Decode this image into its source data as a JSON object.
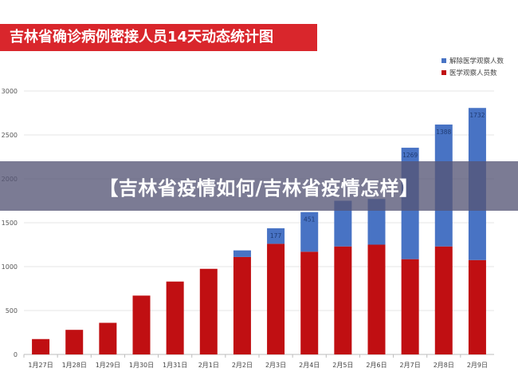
{
  "chart_data": {
    "type": "bar",
    "stacked": true,
    "title": "吉林省确诊病例密接人员14天动态统计图",
    "categories": [
      "1月27日",
      "1月28日",
      "1月29日",
      "1月30日",
      "1月31日",
      "2月1日",
      "2月2日",
      "2月3日",
      "2月4日",
      "2月5日",
      "2月6日",
      "2月7日",
      "2月8日",
      "2月9日"
    ],
    "series": [
      {
        "name": "医学观察人员数",
        "color": "#c00f12",
        "values": [
          175,
          280,
          360,
          670,
          830,
          975,
          1110,
          1260,
          1170,
          1230,
          1250,
          1085,
          1230,
          1075
        ]
      },
      {
        "name": "解除医学观察人数",
        "color": "#4873c4",
        "values": [
          0,
          0,
          0,
          0,
          0,
          0,
          75,
          177,
          451,
          520,
          520,
          1269,
          1388,
          1732
        ]
      }
    ],
    "bar_labels": [
      "",
      "",
      "",
      "",
      "",
      "",
      "",
      "177",
      "451",
      "",
      "",
      "1269",
      "1388",
      "1732"
    ],
    "yticks": [
      "0",
      "500",
      "1000",
      "1500",
      "2000",
      "2500",
      "3000"
    ],
    "ylim": [
      0,
      3000
    ],
    "legend_position": "top-right",
    "grid": true
  },
  "banner": {
    "text": "【吉林省疫情如何/吉林省疫情怎样】"
  }
}
